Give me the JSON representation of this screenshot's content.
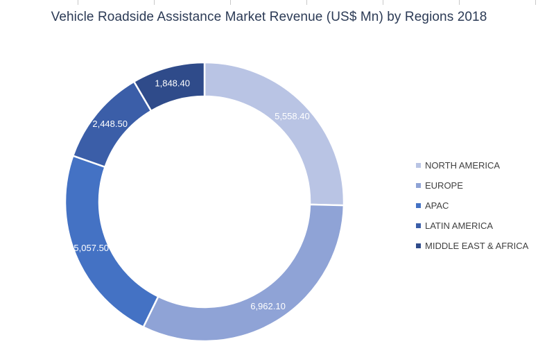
{
  "chart_data": {
    "type": "pie",
    "variant": "donut",
    "title": "Vehicle Roadside Assistance Market Revenue (US$ Mn) by Regions 2018",
    "categories": [
      "NORTH AMERICA",
      "EUROPE",
      "APAC",
      "LATIN AMERICA",
      "MIDDLE EAST & AFRICA"
    ],
    "values": [
      5558.4,
      6962.1,
      5057.5,
      2448.5,
      1848.4
    ],
    "data_labels": [
      "5,558.40",
      "6,962.10",
      "5,057.50",
      "2,448.50",
      "1,848.40"
    ],
    "colors": [
      "#b9c4e4",
      "#8fa3d6",
      "#4472c4",
      "#3b5ea8",
      "#2f4b8a"
    ],
    "legend_position": "right"
  }
}
